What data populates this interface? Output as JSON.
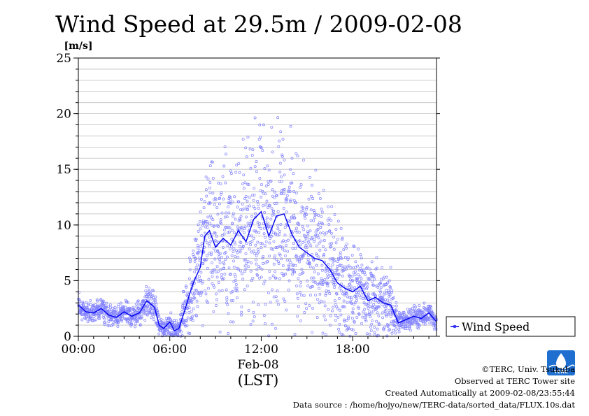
{
  "chart_data": {
    "type": "scatter",
    "title": "Wind Speed at 29.5m / 2009-02-08",
    "ylabel": "[m/s]",
    "ylim": [
      0,
      25
    ],
    "yticks": [
      "0",
      "5",
      "10",
      "15",
      "20",
      "25"
    ],
    "xlim_hours": [
      0,
      23.5
    ],
    "xticks": [
      {
        "hour": 0,
        "label": "00:00"
      },
      {
        "hour": 6,
        "label": "06:00"
      },
      {
        "hour": 12,
        "label": "12:00"
      },
      {
        "hour": 18,
        "label": "18:00"
      }
    ],
    "xdate_label": "Feb-08",
    "xlabel": "(LST)",
    "grid": true,
    "legend": {
      "placement": "right",
      "entries": [
        "Wind Speed"
      ]
    },
    "series": [
      {
        "name": "Wind Speed",
        "kind": "mean line with 10 s sample scatter",
        "color": "#0000ee",
        "scatter_color": "#8080ff",
        "hour": [
          0,
          0.5,
          1,
          1.5,
          2,
          2.5,
          3,
          3.5,
          4,
          4.5,
          5,
          5.3,
          5.6,
          6,
          6.3,
          6.6,
          7,
          7.3,
          7.6,
          8,
          8.3,
          8.6,
          9,
          9.5,
          10,
          10.5,
          11,
          11.5,
          12,
          12.5,
          13,
          13.5,
          14,
          14.5,
          15,
          15.5,
          16,
          16.5,
          17,
          17.5,
          18,
          18.5,
          19,
          19.5,
          20,
          20.5,
          21,
          21.5,
          22,
          22.5,
          23,
          23.5
        ],
        "mean": [
          2.8,
          2.2,
          2.1,
          2.5,
          1.9,
          1.7,
          2.2,
          1.8,
          2.1,
          3.2,
          2.6,
          1.0,
          0.7,
          1.3,
          0.5,
          0.7,
          2.4,
          3.8,
          5.0,
          6.2,
          9.0,
          9.5,
          8.0,
          8.8,
          8.2,
          9.5,
          8.5,
          10.5,
          11.2,
          9.0,
          10.8,
          11.0,
          9.2,
          8.0,
          7.5,
          7.0,
          6.8,
          6.0,
          4.8,
          4.3,
          4.0,
          4.5,
          3.2,
          3.5,
          3.0,
          2.8,
          1.2,
          1.5,
          1.8,
          1.6,
          2.1,
          1.3
        ],
        "spread": [
          0.6,
          0.6,
          0.6,
          0.6,
          0.6,
          0.6,
          0.6,
          0.6,
          0.7,
          0.9,
          0.8,
          0.6,
          0.5,
          0.7,
          0.5,
          0.6,
          1.3,
          2.3,
          3.0,
          3.7,
          4.5,
          4.6,
          4.5,
          4.5,
          4.5,
          4.7,
          4.7,
          5.0,
          5.1,
          5.0,
          5.0,
          5.0,
          4.8,
          4.5,
          4.2,
          4.0,
          3.8,
          3.5,
          3.0,
          2.7,
          2.4,
          2.4,
          2.1,
          2.1,
          1.9,
          1.8,
          0.6,
          0.6,
          0.6,
          0.6,
          0.6,
          0.5
        ]
      }
    ]
  },
  "footer": {
    "copyright": "©TERC, Univ. Tsukuba",
    "observed": "Observed at TERC Tower site",
    "created": "Created Automatically at 2009-02-08/23:55:44",
    "source": "Data source : /home/hojyo/new/TERC-data/sorted_data/FLUX.10s.dat"
  },
  "logo": {
    "text": "TERC"
  }
}
